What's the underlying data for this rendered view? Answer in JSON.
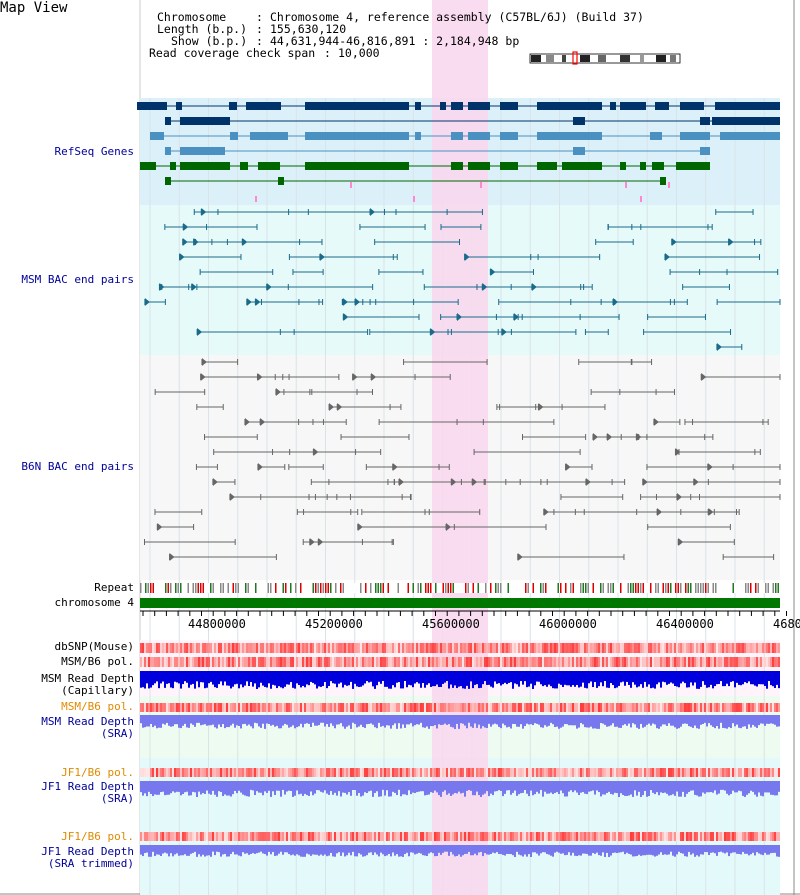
{
  "view_title": "Map View",
  "header": {
    "chromosome_label": "Chromosome",
    "chromosome_value": "Chromosome 4, reference assembly (C57BL/6J) (Build 37)",
    "length_label": "Length (b.p.)",
    "length_value": "155,630,120",
    "show_label": "Show (b.p.)",
    "show_value": "44,631,944-46,816,891 : 2,184,948 bp",
    "coverage_label": "Read coverage check span",
    "coverage_value": "10,000"
  },
  "tracks": {
    "refseq": "RefSeq Genes",
    "msm_bac": "MSM BAC end pairs",
    "b6n_bac": "B6N BAC end pairs",
    "repeat": "Repeat",
    "chromosome": "chromosome 4",
    "dbsnp": "dbSNP(Mouse)",
    "msm_b6_pol": "MSM/B6 pol.",
    "msm_depth_cap_1": "MSM Read Depth",
    "msm_depth_cap_2": "(Capillary)",
    "msm_b6_pol_2": "MSM/B6 pol.",
    "msm_depth_sra_1": "MSM Read Depth",
    "msm_depth_sra_2": "(SRA)",
    "jf1_b6_pol": "JF1/B6 pol.",
    "jf1_depth_sra_1": "JF1 Read Depth",
    "jf1_depth_sra_2": "(SRA)",
    "jf1_b6_pol_2": "JF1/B6 pol.",
    "jf1_depth_trim_1": "JF1 Read Depth",
    "jf1_depth_trim_2": "(SRA trimmed)"
  },
  "axis": {
    "ticks": [
      "44800000",
      "45200000",
      "45600000",
      "46000000",
      "46400000",
      "4680"
    ]
  },
  "colors": {
    "refseq_bg": "#dcf0fa",
    "bac_bg": "#e6fafa",
    "b6n_bg": "#f7f7f7",
    "highlight": "#f8d8ee",
    "chromosome_bar": "#007700",
    "gene_dark": "#00336a",
    "gene_mid": "#4a90c0",
    "gene_green": "#006600",
    "depth_blue": "#0000dd",
    "depth_light": "#7777ee"
  }
}
